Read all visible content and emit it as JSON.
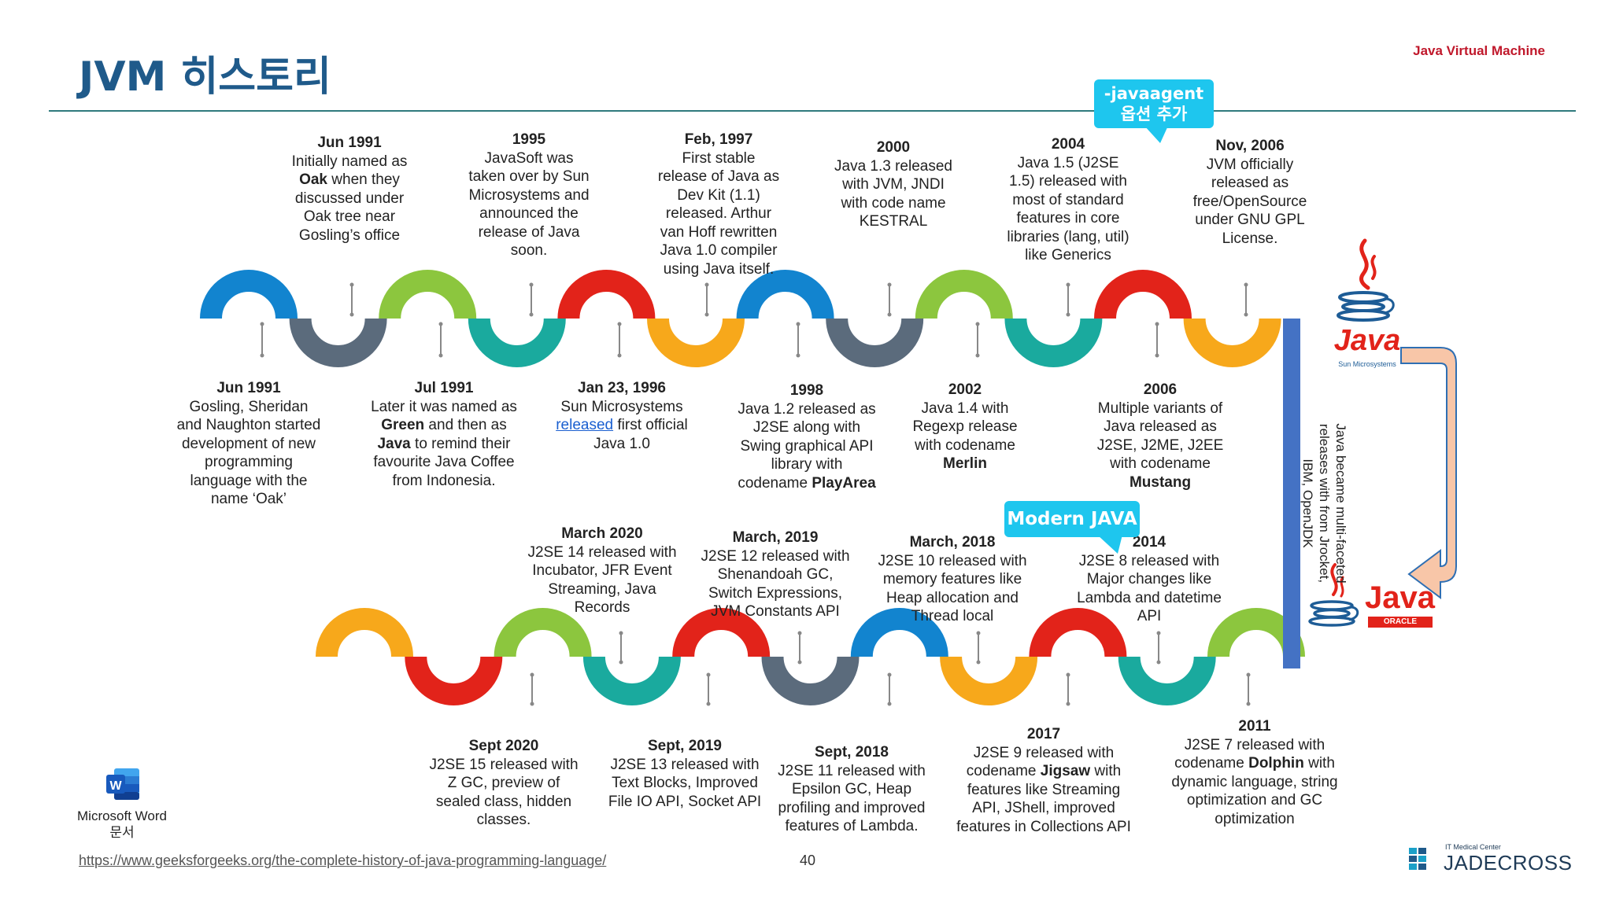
{
  "title": "JVM 히스토리",
  "header_right": "Java Virtual Machine",
  "callouts": {
    "javaagent_line1": "-javaagent",
    "javaagent_line2": "옵션 추가",
    "modern": "Modern JAVA"
  },
  "side_note": "Java became multi-faceted releases with from Jrocket, IBM, OpenJDK",
  "logos": {
    "sun_java": "Java",
    "sun_sub": "Sun Microsystems",
    "oracle_java": "Java",
    "oracle_sub": "ORACLE"
  },
  "word_icon": {
    "line1": "Microsoft Word",
    "line2": "문서"
  },
  "footer": {
    "url": "https://www.geeksforgeeks.org/the-complete-history-of-java-programming-language/",
    "page": "40",
    "brand_small": "IT Medical Center",
    "brand": "JADECROSS"
  },
  "colors": {
    "blue": "#1284cf",
    "slate": "#5b6b7c",
    "teal": "#1aaa9e",
    "green": "#8cc63e",
    "red": "#e2231a",
    "orange": "#f7a81b",
    "connector": "#4472c4"
  },
  "row1_colors": [
    "blue",
    "slate",
    "green",
    "teal",
    "red",
    "orange",
    "blue",
    "slate",
    "green",
    "teal",
    "red",
    "orange"
  ],
  "row2_colors": [
    "green",
    "teal",
    "red",
    "orange",
    "blue",
    "slate",
    "red",
    "teal",
    "green",
    "red",
    "orange"
  ],
  "events_top": [
    {
      "h": "Jun 1991",
      "lines": [
        "Initially named as",
        "<b>Oak</b> when they",
        "discussed under",
        "Oak tree near",
        "Gosling’s office"
      ]
    },
    {
      "h": "1995",
      "lines": [
        "JavaSoft was",
        "taken over by Sun",
        "Microsystems and",
        "announced the",
        "release of Java",
        "soon."
      ]
    },
    {
      "h": "Feb, 1997",
      "lines": [
        "First stable",
        "release of Java as",
        "Dev Kit (1.1)",
        "released. Arthur",
        "van Hoff rewritten",
        "Java 1.0 compiler",
        "using Java itself."
      ]
    },
    {
      "h": "2000",
      "lines": [
        "Java 1.3 released",
        "with JVM, JNDI",
        "with code name",
        "KESTRAL"
      ]
    },
    {
      "h": "2004",
      "lines": [
        "Java 1.5 (J2SE",
        "1.5) released with",
        "most of standard",
        "features in core",
        "libraries (lang, util)",
        "like Generics"
      ]
    },
    {
      "h": "Nov, 2006",
      "lines": [
        "JVM officially",
        "released as",
        "free/OpenSource",
        "under GNU GPL",
        "License."
      ]
    }
  ],
  "events_mid": [
    {
      "h": "Jun 1991",
      "lines": [
        "Gosling, Sheridan",
        "and Naughton started",
        "development of new",
        "programming",
        "language with the",
        "name ‘Oak’"
      ]
    },
    {
      "h": "Jul 1991",
      "lines": [
        "Later it was named as",
        "<b>Green</b> and then as",
        "<b>Java</b> to remind their",
        "favourite Java Coffee",
        "from Indonesia."
      ]
    },
    {
      "h": "Jan 23, 1996",
      "lines": [
        "Sun Microsystems",
        "<span class=\"lnk\">released</span> first official",
        "Java 1.0"
      ]
    },
    {
      "h": "1998",
      "lines": [
        "Java 1.2 released as",
        "J2SE along with",
        "Swing graphical API",
        "library with",
        "codename <b>PlayArea</b>"
      ]
    },
    {
      "h": "2002",
      "lines": [
        "Java 1.4 with",
        "Regexp release",
        "with codename",
        "<b>Merlin</b>"
      ]
    },
    {
      "h": "2006",
      "lines": [
        "Multiple variants of",
        "Java released as",
        "J2SE, J2ME, J2EE",
        "with codename",
        "<b>Mustang</b>"
      ]
    }
  ],
  "events_lower_top": [
    {
      "h": "March 2020",
      "lines": [
        "J2SE 14 released with",
        "Incubator, JFR Event",
        "Streaming, Java",
        "Records"
      ]
    },
    {
      "h": "March, 2019",
      "lines": [
        "J2SE 12 released with",
        "Shenandoah GC,",
        "Switch Expressions,",
        "JVM Constants API"
      ]
    },
    {
      "h": "March, 2018",
      "lines": [
        "J2SE 10 released with",
        "memory features like",
        "Heap allocation and",
        "Thread local"
      ]
    },
    {
      "h": "2014",
      "lines": [
        "J2SE 8 released with",
        "Major changes like",
        "Lambda and datetime",
        "API"
      ]
    }
  ],
  "events_bottom": [
    {
      "h": "Sept 2020",
      "lines": [
        "J2SE 15 released with",
        "Z GC, preview of",
        "sealed class, hidden",
        "classes."
      ]
    },
    {
      "h": "Sept, 2019",
      "lines": [
        "J2SE 13 released with",
        "Text Blocks, Improved",
        "File IO API, Socket API"
      ]
    },
    {
      "h": "Sept, 2018",
      "lines": [
        "J2SE 11 released with",
        "Epsilon GC, Heap",
        "profiling and improved",
        "features of Lambda."
      ]
    },
    {
      "h": "2017",
      "lines": [
        "J2SE 9 released with",
        "codename <b>Jigsaw</b> with",
        "features like Streaming",
        "API, JShell, improved",
        "features in Collections API"
      ]
    },
    {
      "h": "2011",
      "lines": [
        "J2SE 7 released with",
        "codename <b>Dolphin</b> with",
        "dynamic language, string",
        "optimization and GC",
        "optimization"
      ]
    }
  ]
}
